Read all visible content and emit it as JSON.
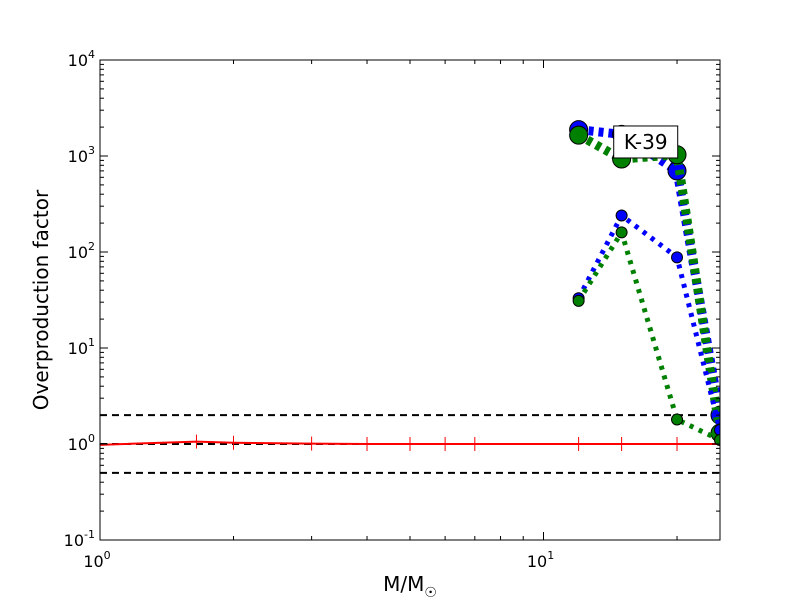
{
  "chart_data": {
    "type": "line",
    "xscale": "log",
    "yscale": "log",
    "xlim": [
      1,
      25
    ],
    "ylim": [
      0.1,
      10000
    ],
    "xlabel_main": "M/M",
    "xlabel_sub": "☉",
    "ylabel": "Overproduction factor",
    "x_ticks": [
      {
        "base": "10",
        "exp": "0",
        "value": 1
      },
      {
        "base": "10",
        "exp": "1",
        "value": 10
      }
    ],
    "y_ticks": [
      {
        "base": "10",
        "exp": "-1",
        "value": 0.1
      },
      {
        "base": "10",
        "exp": "0",
        "value": 1
      },
      {
        "base": "10",
        "exp": "1",
        "value": 10
      },
      {
        "base": "10",
        "exp": "2",
        "value": 100
      },
      {
        "base": "10",
        "exp": "3",
        "value": 1000
      },
      {
        "base": "10",
        "exp": "4",
        "value": 10000
      }
    ],
    "annotation": {
      "text": "K-39",
      "x": 17,
      "y": 1400
    },
    "reference_lines": [
      {
        "y": 2.0,
        "color": "#000000",
        "style": "dashed"
      },
      {
        "y": 1.0,
        "color": "#000000",
        "style": "dashed"
      },
      {
        "y": 0.5,
        "color": "#000000",
        "style": "dashed"
      }
    ],
    "series": [
      {
        "color": "#ff0000",
        "style": "solid",
        "marker": "tick",
        "x": [
          1,
          1.65,
          2,
          3,
          4,
          5,
          6,
          7,
          12,
          15,
          20,
          25
        ],
        "y": [
          0.98,
          1.06,
          1.03,
          1.01,
          1.0,
          1.0,
          1.0,
          1.0,
          1.0,
          1.0,
          1.0,
          1.0
        ]
      },
      {
        "color": "#0000ff",
        "style": "dotted",
        "marker": "circle",
        "weight": "thick",
        "x": [
          12,
          15,
          20,
          25
        ],
        "y": [
          1880,
          1680,
          700,
          2.0
        ]
      },
      {
        "color": "#008000",
        "style": "dotted",
        "marker": "circle",
        "weight": "thick",
        "x": [
          12,
          15,
          20,
          25
        ],
        "y": [
          1650,
          930,
          1030,
          1.3
        ]
      },
      {
        "color": "#0000ff",
        "style": "dotted",
        "marker": "circle",
        "weight": "thin",
        "x": [
          12,
          15,
          20,
          25
        ],
        "y": [
          33,
          240,
          88,
          1.4
        ]
      },
      {
        "color": "#008000",
        "style": "dotted",
        "marker": "circle",
        "weight": "thin",
        "x": [
          12,
          15,
          20,
          25
        ],
        "y": [
          31,
          160,
          1.8,
          1.1
        ]
      }
    ]
  }
}
